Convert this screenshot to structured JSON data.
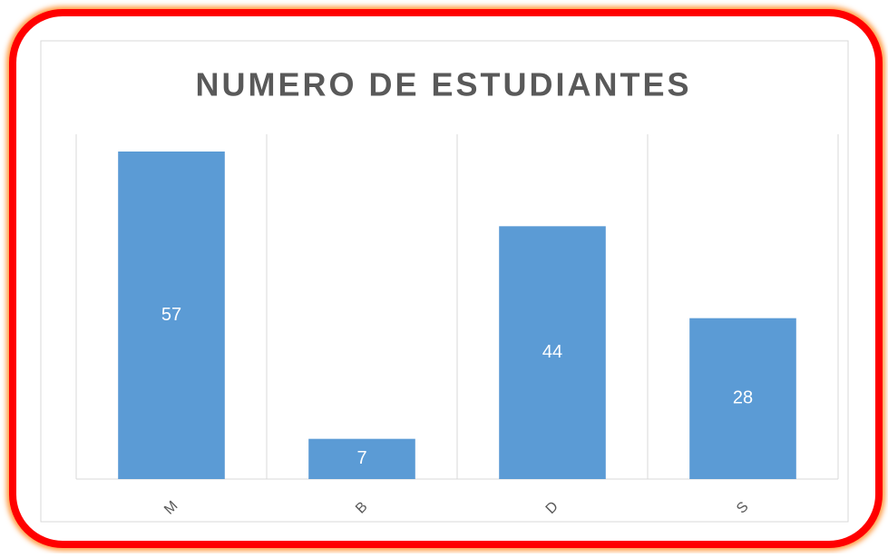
{
  "chart_data": {
    "type": "bar",
    "title": "NUMERO DE ESTUDIANTES",
    "categories": [
      "M",
      "B",
      "D",
      "S"
    ],
    "values": [
      57,
      7,
      44,
      28
    ],
    "color": "#5b9bd5",
    "ylim": [
      0,
      60
    ]
  }
}
